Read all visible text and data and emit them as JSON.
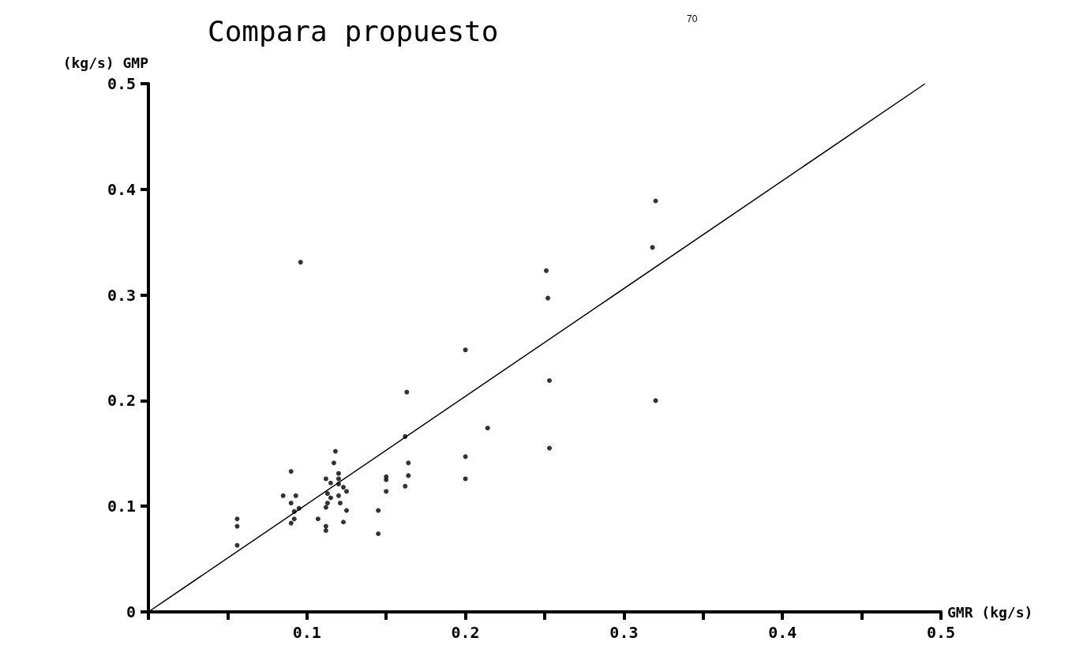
{
  "chart_data": {
    "type": "scatter",
    "title": "Compara propuesto",
    "xlabel": "GMR (kg/s)",
    "ylabel": "(kg/s) GMP",
    "annotations": [
      "70"
    ],
    "xlim": [
      0,
      0.5
    ],
    "ylim": [
      0,
      0.5
    ],
    "xticks": [
      {
        "value": 0,
        "label": null
      },
      {
        "value": 0.05,
        "label": null
      },
      0.1,
      {
        "value": 0.15,
        "label": null
      },
      0.2,
      {
        "value": 0.25,
        "label": null
      },
      0.3,
      {
        "value": 0.35,
        "label": null
      },
      0.4,
      {
        "value": 0.45,
        "label": null
      },
      0.5
    ],
    "yticks": [
      0,
      0.1,
      0.2,
      0.3,
      0.4,
      0.5
    ],
    "grid": false,
    "marker": "circle",
    "series": [
      {
        "color": "#000000",
        "x": [
          0.056,
          0.056,
          0.056,
          0.09,
          0.085,
          0.093,
          0.09,
          0.095,
          0.092,
          0.092,
          0.09,
          0.107,
          0.118,
          0.117,
          0.12,
          0.12,
          0.112,
          0.115,
          0.12,
          0.123,
          0.125,
          0.113,
          0.115,
          0.12,
          0.113,
          0.112,
          0.121,
          0.125,
          0.123,
          0.112,
          0.112,
          0.145,
          0.145,
          0.15,
          0.15,
          0.15,
          0.162,
          0.164,
          0.164,
          0.162,
          0.096,
          0.2,
          0.163,
          0.214,
          0.253,
          0.32,
          0.2,
          0.2,
          0.253,
          0.251,
          0.252,
          0.318,
          0.32
        ],
        "values": [
          0.088,
          0.081,
          0.063,
          0.133,
          0.11,
          0.11,
          0.103,
          0.098,
          0.095,
          0.088,
          0.084,
          0.088,
          0.152,
          0.141,
          0.131,
          0.126,
          0.126,
          0.122,
          0.121,
          0.118,
          0.114,
          0.112,
          0.108,
          0.11,
          0.103,
          0.099,
          0.103,
          0.096,
          0.085,
          0.081,
          0.077,
          0.096,
          0.074,
          0.128,
          0.125,
          0.114,
          0.166,
          0.141,
          0.129,
          0.119,
          0.331,
          0.248,
          0.208,
          0.174,
          0.219,
          0.2,
          0.147,
          0.126,
          0.155,
          0.323,
          0.297,
          0.345,
          0.389
        ]
      },
      {
        "type": "line",
        "color": "#000000",
        "marker": "none",
        "x": [
          0,
          0.49
        ],
        "values": [
          0,
          0.5
        ]
      }
    ]
  }
}
